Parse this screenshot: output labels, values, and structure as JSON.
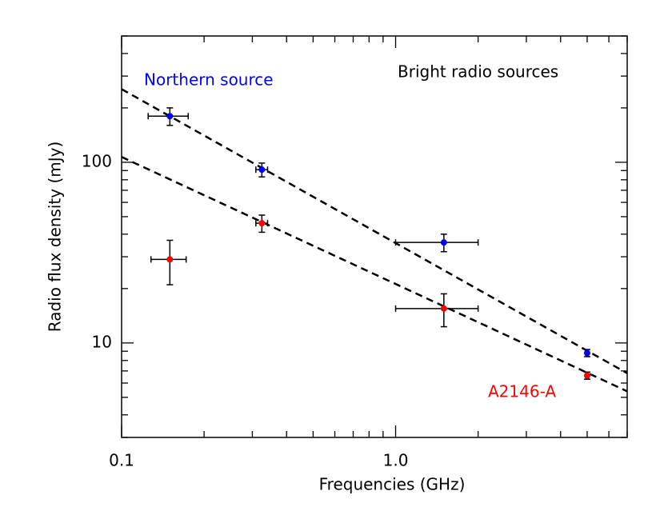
{
  "chart_data": {
    "type": "scatter",
    "annotation": "Bright radio sources",
    "x_label": "Frequencies (GHz)",
    "y_label": "Radio flux density (mJy)",
    "x": [
      0.15,
      0.325,
      1.5,
      5.0
    ],
    "series": [
      {
        "name": "Northern source",
        "color": "#0000ff",
        "values": [
          180,
          91,
          36,
          8.8
        ],
        "yerr": [
          20,
          8,
          4,
          0.4
        ],
        "xerr": [
          0.025,
          0.016,
          0.5,
          0.05
        ]
      },
      {
        "name": "A2146-A",
        "color": "#ff0000",
        "values": [
          29,
          46,
          15.5,
          6.6
        ],
        "yerr": [
          8,
          5,
          3.2,
          0.3
        ],
        "xerr": [
          0.022,
          0.016,
          0.5,
          0.05
        ]
      }
    ],
    "fit_lines": [
      {
        "x": [
          0.1,
          7
        ],
        "values": [
          254,
          6.8
        ],
        "color": "#000000"
      },
      {
        "x": [
          0.1,
          7
        ],
        "values": [
          107,
          5.4
        ],
        "color": "#000000"
      }
    ],
    "xlog": true,
    "ylog": true,
    "xlim": [
      0.1,
      7
    ],
    "ylim": [
      3,
      500
    ],
    "xticks": [
      0.1,
      {
        "value": 1,
        "label": "1.0"
      }
    ],
    "yticks": [
      10,
      100
    ],
    "xminor": [
      0.2,
      0.3,
      0.4,
      0.5,
      0.6,
      0.7,
      0.8,
      0.9,
      2,
      3,
      4,
      5,
      6,
      7
    ],
    "yminor": [
      3,
      4,
      5,
      6,
      7,
      8,
      9,
      20,
      30,
      40,
      50,
      60,
      70,
      80,
      90,
      200,
      300,
      400,
      500
    ]
  }
}
